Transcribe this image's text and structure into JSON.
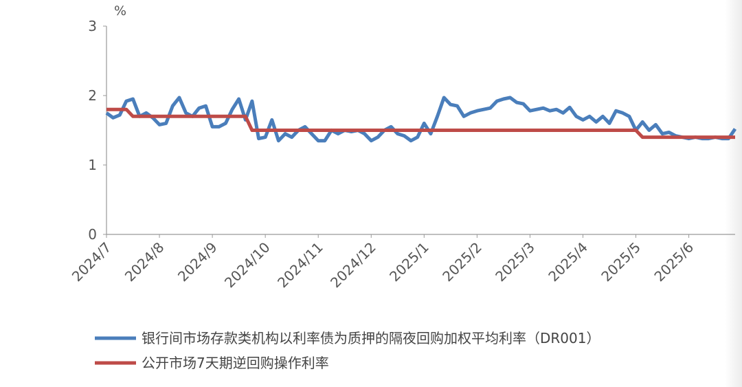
{
  "chart_data": {
    "type": "line",
    "y_unit": "%",
    "categories": [
      "2024/7",
      null,
      null,
      null,
      null,
      null,
      null,
      null,
      "2024/8",
      null,
      null,
      null,
      null,
      null,
      null,
      null,
      "2024/9",
      null,
      null,
      null,
      null,
      null,
      null,
      null,
      "2024/10",
      null,
      null,
      null,
      null,
      null,
      null,
      null,
      "2024/11",
      null,
      null,
      null,
      null,
      null,
      null,
      null,
      "2024/12",
      null,
      null,
      null,
      null,
      null,
      null,
      null,
      "2025/1",
      null,
      null,
      null,
      null,
      null,
      null,
      null,
      "2025/2",
      null,
      null,
      null,
      null,
      null,
      null,
      null,
      "2025/3",
      null,
      null,
      null,
      null,
      null,
      null,
      null,
      "2025/4",
      null,
      null,
      null,
      null,
      null,
      null,
      null,
      "2025/5",
      null,
      null,
      null,
      null,
      null,
      null,
      null,
      "2025/6",
      null,
      null,
      null,
      null,
      null,
      null,
      null
    ],
    "series": [
      {
        "name": "银行间市场存款类机构以利率债为质押的隔夜回购加权平均利率（DR001）",
        "color": "#4a7ebb",
        "values": [
          1.75,
          1.68,
          1.72,
          1.92,
          1.95,
          1.7,
          1.75,
          1.68,
          1.58,
          1.6,
          1.85,
          1.97,
          1.75,
          1.7,
          1.82,
          1.85,
          1.55,
          1.55,
          1.6,
          1.8,
          1.95,
          1.65,
          1.92,
          1.38,
          1.4,
          1.65,
          1.35,
          1.45,
          1.4,
          1.5,
          1.55,
          1.45,
          1.35,
          1.35,
          1.5,
          1.45,
          1.5,
          1.48,
          1.5,
          1.45,
          1.35,
          1.4,
          1.5,
          1.55,
          1.45,
          1.42,
          1.35,
          1.4,
          1.6,
          1.45,
          1.7,
          1.97,
          1.87,
          1.85,
          1.7,
          1.75,
          1.78,
          1.8,
          1.82,
          1.92,
          1.95,
          1.97,
          1.9,
          1.88,
          1.78,
          1.8,
          1.82,
          1.78,
          1.8,
          1.75,
          1.83,
          1.7,
          1.65,
          1.7,
          1.62,
          1.7,
          1.6,
          1.78,
          1.75,
          1.7,
          1.5,
          1.62,
          1.5,
          1.58,
          1.45,
          1.47,
          1.42,
          1.4,
          1.38,
          1.4,
          1.38,
          1.38,
          1.4,
          1.38,
          1.38,
          1.52
        ]
      },
      {
        "name": "公开市场7天期逆回购操作利率",
        "color": "#be4b48",
        "values": [
          1.8,
          1.8,
          1.8,
          1.8,
          1.7,
          1.7,
          1.7,
          1.7,
          1.7,
          1.7,
          1.7,
          1.7,
          1.7,
          1.7,
          1.7,
          1.7,
          1.7,
          1.7,
          1.7,
          1.7,
          1.7,
          1.7,
          1.5,
          1.5,
          1.5,
          1.5,
          1.5,
          1.5,
          1.5,
          1.5,
          1.5,
          1.5,
          1.5,
          1.5,
          1.5,
          1.5,
          1.5,
          1.5,
          1.5,
          1.5,
          1.5,
          1.5,
          1.5,
          1.5,
          1.5,
          1.5,
          1.5,
          1.5,
          1.5,
          1.5,
          1.5,
          1.5,
          1.5,
          1.5,
          1.5,
          1.5,
          1.5,
          1.5,
          1.5,
          1.5,
          1.5,
          1.5,
          1.5,
          1.5,
          1.5,
          1.5,
          1.5,
          1.5,
          1.5,
          1.5,
          1.5,
          1.5,
          1.5,
          1.5,
          1.5,
          1.5,
          1.5,
          1.5,
          1.5,
          1.5,
          1.5,
          1.4,
          1.4,
          1.4,
          1.4,
          1.4,
          1.4,
          1.4,
          1.4,
          1.4,
          1.4,
          1.4,
          1.4,
          1.4,
          1.4,
          1.4
        ]
      }
    ],
    "ylim": [
      0,
      3
    ],
    "yticks": [
      0,
      1,
      2,
      3
    ],
    "grid": false,
    "legend": "bottom"
  }
}
